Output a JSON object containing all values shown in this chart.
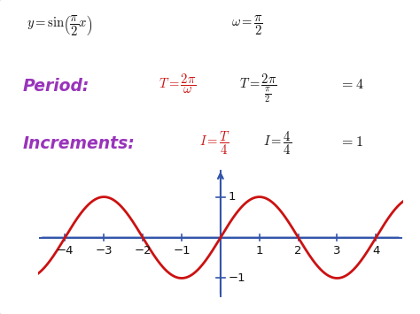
{
  "bg_color": "#e8d8e8",
  "panel_color": "#ffffff",
  "curve_color": "#cc1111",
  "axis_color": "#3355aa",
  "text_color_black": "#111111",
  "text_color_red": "#cc1111",
  "text_color_purple": "#9933bb",
  "xticks": [
    -4,
    -3,
    -2,
    -1,
    1,
    2,
    3,
    4
  ],
  "yticks": [
    -1,
    1
  ],
  "curve_linewidth": 2.0,
  "fig_width": 4.74,
  "fig_height": 3.55,
  "dpi": 100
}
